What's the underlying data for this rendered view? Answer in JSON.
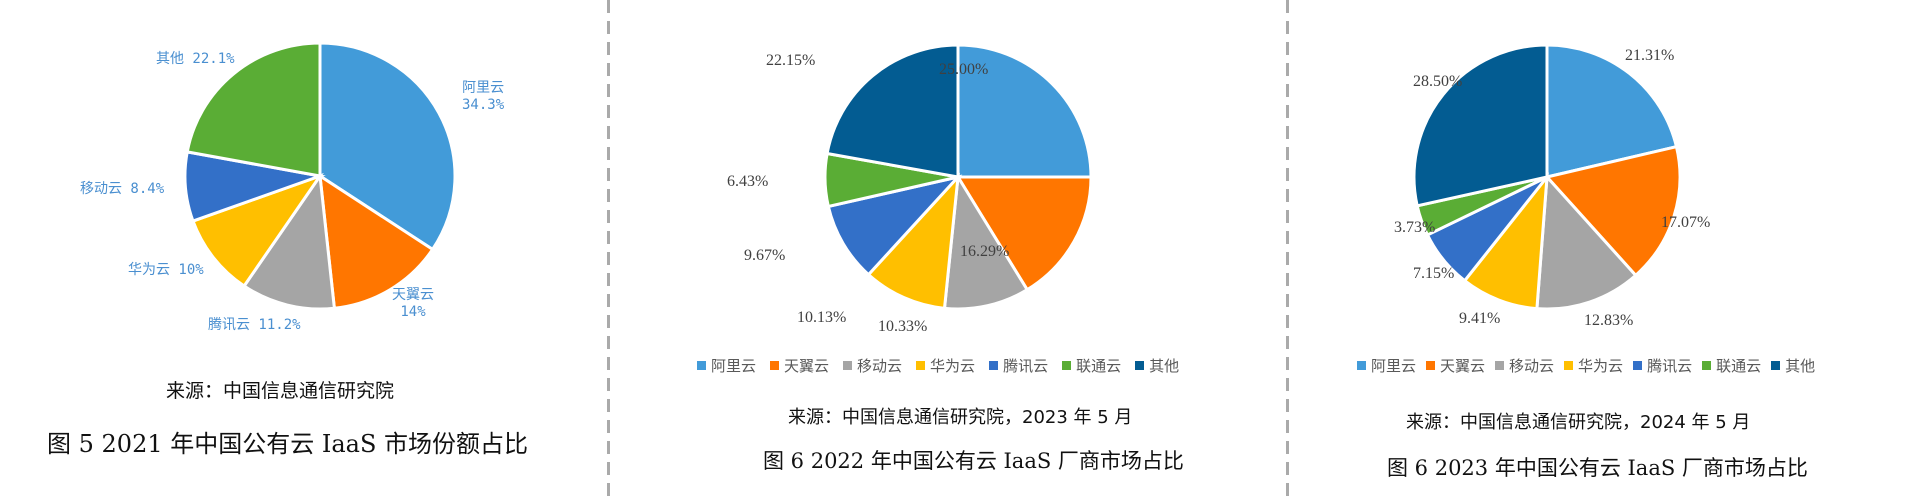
{
  "colors": {
    "阿里云": "#429BD9",
    "天翼云": "#FF7600",
    "移动云": "#A5A5A5",
    "华为云": "#FFBF00",
    "腾讯云": "#3370C8",
    "联通云": "#5AAD35",
    "其他_2021": "#5AAD35",
    "其他": "#035C92"
  },
  "panels": [
    {
      "source": "来源：中国信息通信研究院",
      "caption": "图 5 2021 年中国公有云 IaaS 市场份额占比",
      "labels": [
        "阿里云\n34.3%",
        "天翼云\n14%",
        "腾讯云 11.2%",
        "华为云 10%",
        "移动云 8.4%",
        "其他 22.1%"
      ]
    },
    {
      "source": "来源：中国信息通信研究院，2023 年 5 月",
      "caption": "图 6 2022 年中国公有云 IaaS 厂商市场占比",
      "labels": [
        "25.00%",
        "16.29%",
        "10.33%",
        "10.13%",
        "9.67%",
        "6.43%",
        "22.15%"
      ],
      "legend": [
        "阿里云",
        "天翼云",
        "移动云",
        "华为云",
        "腾讯云",
        "联通云",
        "其他"
      ]
    },
    {
      "source": "来源：中国信息通信研究院，2024 年 5 月",
      "caption": "图 6 2023 年中国公有云 IaaS 厂商市场占比",
      "labels": [
        "21.31%",
        "17.07%",
        "12.83%",
        "9.41%",
        "7.15%",
        "3.73%",
        "28.50%"
      ],
      "legend": [
        "阿里云",
        "天翼云",
        "移动云",
        "华为云",
        "腾讯云",
        "联通云",
        "其他"
      ]
    }
  ],
  "chart_data": [
    {
      "type": "pie",
      "title": "图 5 2021 年中国公有云 IaaS 市场份额占比",
      "subtitle": "来源：中国信息通信研究院",
      "categories": [
        "阿里云",
        "天翼云",
        "腾讯云",
        "华为云",
        "移动云",
        "其他"
      ],
      "values": [
        34.3,
        14,
        11.2,
        10,
        8.4,
        22.1
      ],
      "colors": [
        "#429BD9",
        "#FF7600",
        "#A5A5A5",
        "#FFBF00",
        "#3370C8",
        "#5AAD35"
      ],
      "data_labels": [
        "阿里云 34.3%",
        "天翼云 14%",
        "腾讯云 11.2%",
        "华为云 10%",
        "移动云 8.4%",
        "其他 22.1%"
      ],
      "legend": null
    },
    {
      "type": "pie",
      "title": "图 6 2022 年中国公有云 IaaS 厂商市场占比",
      "subtitle": "来源：中国信息通信研究院，2023 年 5 月",
      "categories": [
        "阿里云",
        "天翼云",
        "移动云",
        "华为云",
        "腾讯云",
        "联通云",
        "其他"
      ],
      "values": [
        25.0,
        16.29,
        10.33,
        10.13,
        9.67,
        6.43,
        22.15
      ],
      "colors": [
        "#429BD9",
        "#FF7600",
        "#A5A5A5",
        "#FFBF00",
        "#3370C8",
        "#5AAD35",
        "#035C92"
      ],
      "legend": {
        "position": "bottom",
        "entries": [
          "阿里云",
          "天翼云",
          "移动云",
          "华为云",
          "腾讯云",
          "联通云",
          "其他"
        ]
      }
    },
    {
      "type": "pie",
      "title": "图 6 2023 年中国公有云 IaaS 厂商市场占比",
      "subtitle": "来源：中国信息通信研究院，2024 年 5 月",
      "categories": [
        "阿里云",
        "天翼云",
        "移动云",
        "华为云",
        "腾讯云",
        "联通云",
        "其他"
      ],
      "values": [
        21.31,
        17.07,
        12.83,
        9.41,
        7.15,
        3.73,
        28.5
      ],
      "colors": [
        "#429BD9",
        "#FF7600",
        "#A5A5A5",
        "#FFBF00",
        "#3370C8",
        "#5AAD35",
        "#035C92"
      ],
      "legend": {
        "position": "bottom",
        "entries": [
          "阿里云",
          "天翼云",
          "移动云",
          "华为云",
          "腾讯云",
          "联通云",
          "其他"
        ]
      }
    }
  ]
}
